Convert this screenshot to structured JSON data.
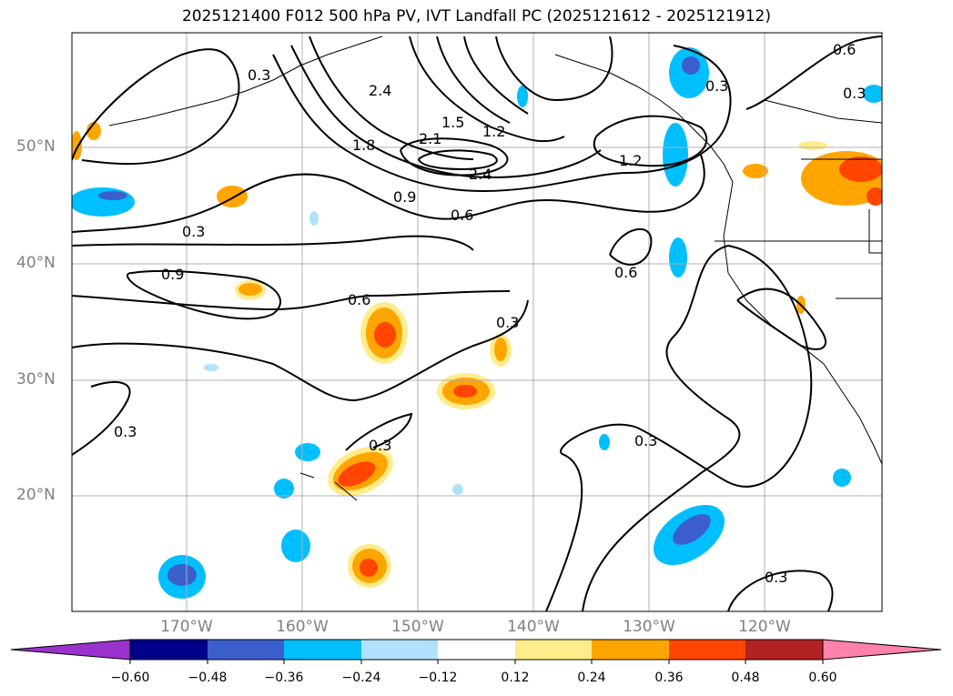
{
  "title": "2025121400 F012 500 hPa PV, IVT Landfall PC (2025121612 - 2025121912)",
  "map": {
    "lat_labels": [
      "50°N",
      "40°N",
      "30°N",
      "20°N"
    ],
    "lon_labels": [
      "170°W",
      "160°W",
      "150°W",
      "140°W",
      "130°W",
      "120°W"
    ],
    "contour_labels": [
      "0.3",
      "2.4",
      "1.8",
      "2.1",
      "1.5",
      "1.2",
      "2.4",
      "0.9",
      "0.6",
      "1.2",
      "0.6",
      "0.3",
      "0.6",
      "0.3",
      "0.6",
      "0.3",
      "0.3",
      "0.3",
      "0.3",
      "0.9",
      "0.3",
      "0.3"
    ],
    "contour_color": "#000000",
    "grid_color": "#b0b0b0"
  },
  "colorbar": {
    "tick_labels": [
      "−0.60",
      "−0.48",
      "−0.36",
      "−0.24",
      "−0.12",
      "0.12",
      "0.24",
      "0.36",
      "0.48",
      "0.60"
    ],
    "colors": [
      "#9932cc",
      "#00008b",
      "#3a5fcd",
      "#00bfff",
      "#b0e2ff",
      "#ffffff",
      "#ffec8b",
      "#ffa500",
      "#ff4500",
      "#b22222",
      "#ff82ab"
    ]
  }
}
